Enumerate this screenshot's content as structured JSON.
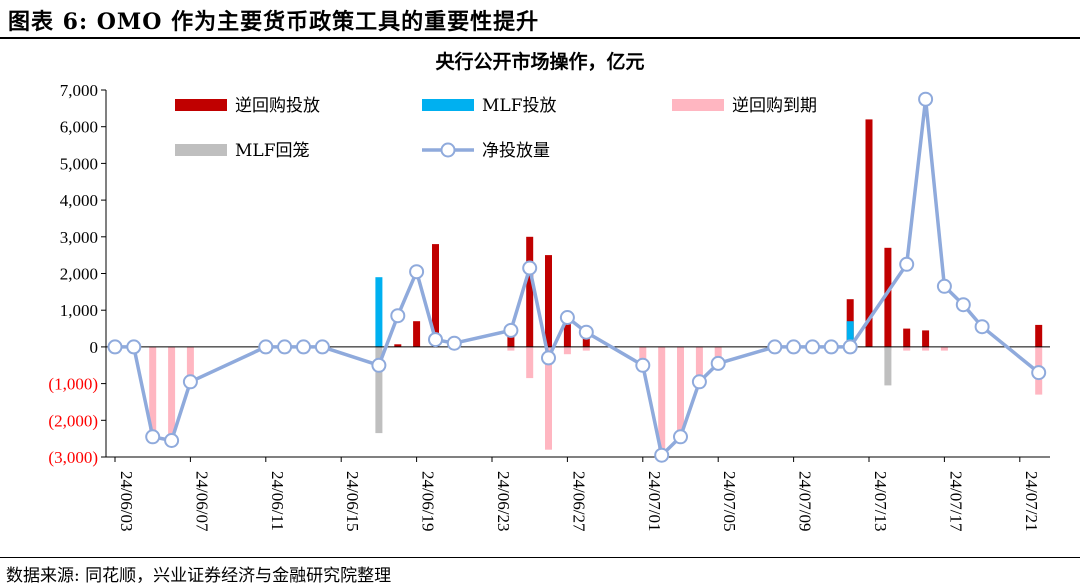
{
  "figure_title": "图表 6: OMO 作为主要货币政策工具的重要性提升",
  "source": "数据来源: 同花顺，兴业证券经济与金融研究院整理",
  "colors": {
    "reverse_repo_injection": "#c00000",
    "mlf_injection": "#00b0f0",
    "reverse_repo_maturity": "#ffb6c1",
    "mlf_maturity": "#bfbfbf",
    "net_injection_line": "#8faadc",
    "negative_tick": "#ff0000"
  },
  "chart_data": {
    "type": "bar",
    "title": "央行公开市场操作，亿元",
    "xlabel": "",
    "ylabel": "",
    "ylim": [
      -3000,
      7000
    ],
    "y_ticks": [
      7000,
      6000,
      5000,
      4000,
      3000,
      2000,
      1000,
      0,
      -1000,
      -2000,
      -3000
    ],
    "y_tick_labels": [
      "7,000",
      "6,000",
      "5,000",
      "4,000",
      "3,000",
      "2,000",
      "1,000",
      "0",
      "(1,000)",
      "(2,000)",
      "(3,000)"
    ],
    "x_tick_labels": [
      "24/06/03",
      "24/06/07",
      "24/06/11",
      "24/06/15",
      "24/06/19",
      "24/06/23",
      "24/06/27",
      "24/07/01",
      "24/07/05",
      "24/07/09",
      "24/07/13",
      "24/07/17",
      "24/07/21"
    ],
    "x_tick_start_day": 0,
    "x_tick_step_days": 4,
    "day_count": 50,
    "legend": [
      "逆回购投放",
      "MLF投放",
      "逆回购到期",
      "MLF回笼",
      "净投放量"
    ],
    "legend_placement": "top",
    "grid": false,
    "series": [
      {
        "name": "逆回购投放",
        "kind": "bar",
        "color_key": "reverse_repo_injection",
        "days": [
          15,
          16,
          17,
          21,
          22,
          23,
          24,
          25,
          35,
          36,
          38,
          39,
          40,
          41,
          42,
          43,
          46,
          49
        ],
        "values": [
          70,
          700,
          2800,
          500,
          3000,
          2500,
          700,
          500,
          50,
          100,
          0,
          1300,
          6200,
          2700,
          500,
          450,
          0,
          600
        ]
      },
      {
        "name": "MLF投放",
        "kind": "bar",
        "color_key": "mlf_injection",
        "days": [
          14,
          38,
          39
        ],
        "values": [
          1900,
          0,
          700
        ]
      },
      {
        "name": "逆回购到期",
        "kind": "bar",
        "color_key": "reverse_repo_maturity",
        "days": [
          2,
          3,
          4,
          21,
          22,
          23,
          24,
          25,
          28,
          29,
          30,
          31,
          32,
          41,
          42,
          43,
          44,
          49
        ],
        "values": [
          -2400,
          -2500,
          -1000,
          -100,
          -850,
          -2800,
          -200,
          -100,
          -450,
          -2900,
          -2500,
          -1000,
          -450,
          -100,
          -100,
          -100,
          -100,
          -1300
        ]
      },
      {
        "name": "MLF回笼",
        "kind": "bar",
        "color_key": "mlf_maturity",
        "days": [
          14,
          41
        ],
        "values": [
          -2350,
          -1050
        ]
      },
      {
        "name": "净投放量",
        "kind": "line",
        "color_key": "net_injection_line",
        "days": [
          0,
          1,
          2,
          3,
          4,
          8,
          9,
          10,
          11,
          14,
          15,
          16,
          17,
          18,
          21,
          22,
          23,
          24,
          25,
          28,
          29,
          30,
          31,
          32,
          35,
          36,
          37,
          38,
          39,
          42,
          43,
          44,
          45,
          46,
          49
        ],
        "values": [
          0,
          0,
          -2450,
          -2550,
          -950,
          0,
          0,
          0,
          0,
          -500,
          850,
          2050,
          200,
          100,
          450,
          2150,
          -300,
          800,
          400,
          -500,
          -2950,
          -2450,
          -950,
          -450,
          0,
          0,
          0,
          0,
          0,
          2250,
          6750,
          1650,
          1150,
          550,
          -700
        ]
      }
    ]
  }
}
